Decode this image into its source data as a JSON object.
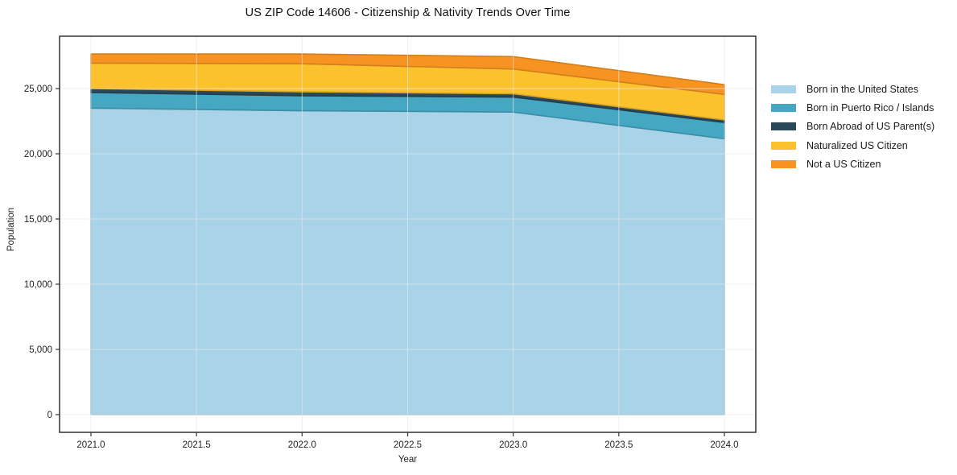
{
  "figure": {
    "title": "US ZIP Code 14606 - Citizenship & Nativity Trends Over Time"
  },
  "axes": {
    "xlabel": "Year",
    "ylabel": "Population"
  },
  "chart_data": {
    "type": "area",
    "stacked": true,
    "title": "US ZIP Code 14606 - Citizenship & Nativity Trends Over Time",
    "xlabel": "Year",
    "ylabel": "Population",
    "x": [
      2021,
      2022,
      2023,
      2024
    ],
    "x_tick_values": [
      2021.0,
      2021.5,
      2022.0,
      2022.5,
      2023.0,
      2023.5,
      2024.0
    ],
    "x_tick_labels": [
      "2021.0",
      "2021.5",
      "2022.0",
      "2022.5",
      "2023.0",
      "2023.5",
      "2024.0"
    ],
    "y_tick_values": [
      0,
      5000,
      10000,
      15000,
      20000,
      25000
    ],
    "y_tick_labels": [
      "0",
      "5,000",
      "10,000",
      "15,000",
      "20,000",
      "25,000"
    ],
    "xlim": [
      2020.85,
      2024.15
    ],
    "ylim": [
      -1380,
      29030
    ],
    "grid": true,
    "legend_position": "right-of-plot",
    "series": [
      {
        "name": "Born in the United States",
        "color": "#A8D3E8",
        "values": [
          23500,
          23300,
          23200,
          21150
        ]
      },
      {
        "name": "Born in Puerto Rico / Islands",
        "color": "#45A7C1",
        "values": [
          1200,
          1150,
          1150,
          1250
        ]
      },
      {
        "name": "Born Abroad of US Parent(s)",
        "color": "#29485A",
        "values": [
          300,
          300,
          250,
          200
        ]
      },
      {
        "name": "Naturalized US Citizen",
        "color": "#FCC22D",
        "values": [
          1950,
          2150,
          1900,
          1950
        ]
      },
      {
        "name": "Not a US Citizen",
        "color": "#F79421",
        "values": [
          700,
          750,
          950,
          750
        ]
      }
    ],
    "stacked_totals": [
      27650,
      27650,
      27450,
      25300
    ],
    "colors": {
      "spine": "#111111",
      "tick": "#333333",
      "tick_label": "#222222",
      "grid": "#e9e9e9"
    }
  }
}
